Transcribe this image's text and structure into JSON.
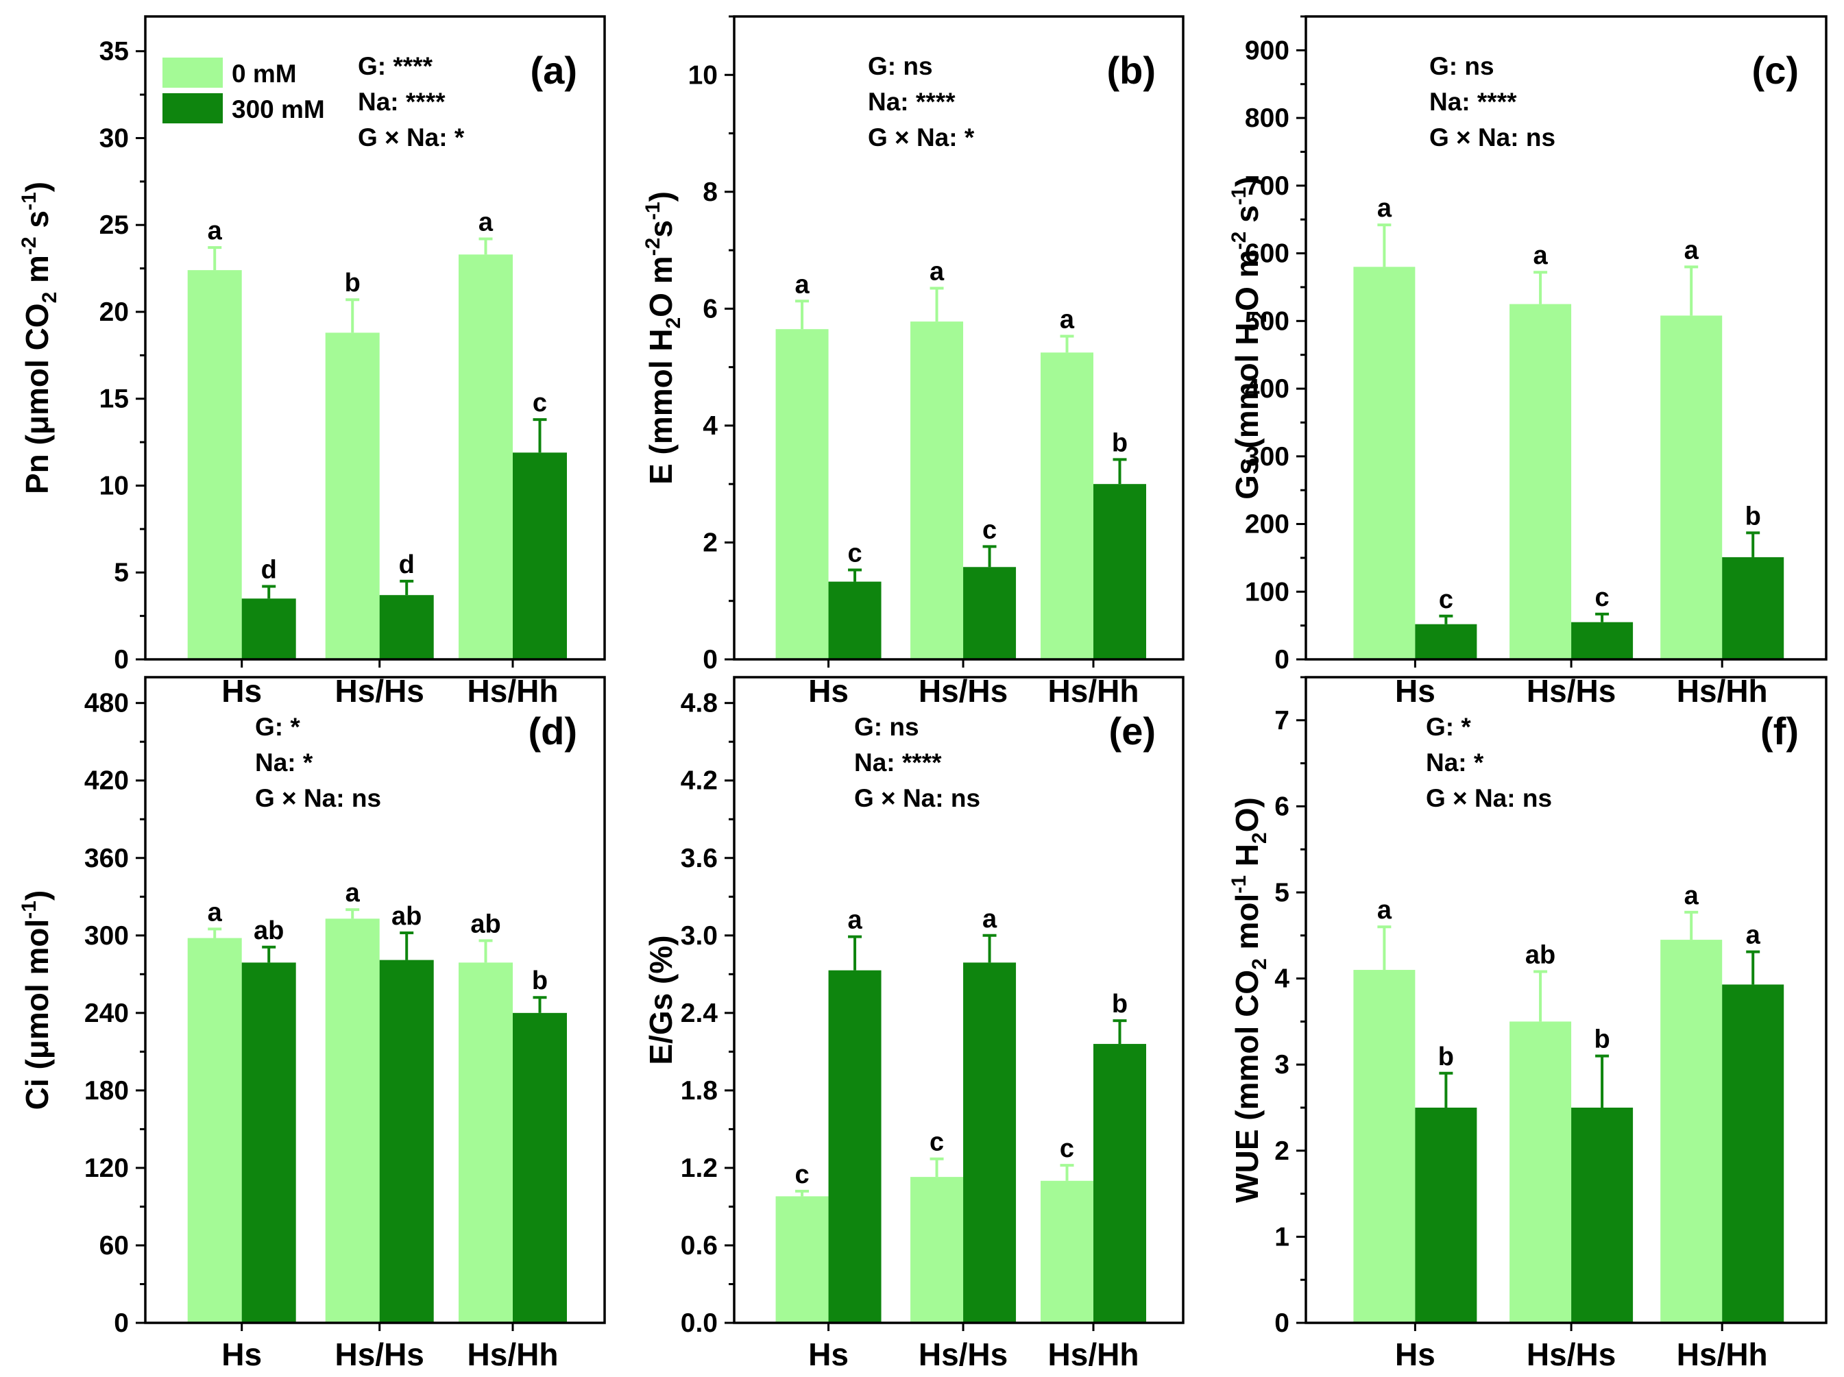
{
  "chart_data": [
    {
      "type": "bar",
      "panel_label": "(a)",
      "ylabel": {
        "main": "Pn (",
        "mu": "μ",
        "text1": "mol CO",
        "sub1": "2",
        "text2": " m",
        "sup1": "-2",
        "text3": " s",
        "sup2": "-1",
        "text4": ")"
      },
      "ylim": [
        0,
        37
      ],
      "yticks": [
        0,
        5,
        10,
        15,
        20,
        25,
        30,
        35
      ],
      "ytick_labels": [
        "0",
        "5",
        "10",
        "15",
        "20",
        "25",
        "30",
        "35"
      ],
      "categories": [
        "Hs",
        "Hs/Hs",
        "Hs/Hh"
      ],
      "series": [
        {
          "name": "0 mM",
          "color": "#a4fa96",
          "values": [
            22.4,
            18.8,
            23.3
          ],
          "errors": [
            1.3,
            1.9,
            0.9
          ],
          "letters": [
            "a",
            "b",
            "a"
          ]
        },
        {
          "name": "300 mM",
          "color": "#0e850e",
          "values": [
            3.5,
            3.7,
            11.9
          ],
          "errors": [
            0.7,
            0.8,
            1.9
          ],
          "letters": [
            "d",
            "d",
            "c"
          ]
        }
      ],
      "stats": [
        "G: ****",
        "Na: ****",
        "G × Na: *"
      ]
    },
    {
      "type": "bar",
      "panel_label": "(b)",
      "ylabel": {
        "main": "E (mmol H",
        "sub1": "2",
        "text1": "O m",
        "sup1": "-2",
        "text2": "s",
        "sup2": "-1",
        "text3": ")"
      },
      "ylim": [
        0,
        11
      ],
      "yticks": [
        0,
        2,
        4,
        6,
        8,
        10
      ],
      "ytick_labels": [
        "0",
        "2",
        "4",
        "6",
        "8",
        "10"
      ],
      "categories": [
        "Hs",
        "Hs/Hs",
        "Hs/Hh"
      ],
      "series": [
        {
          "name": "0 mM",
          "color": "#a4fa96",
          "values": [
            5.65,
            5.78,
            5.25
          ],
          "errors": [
            0.48,
            0.57,
            0.28
          ],
          "letters": [
            "a",
            "a",
            "a"
          ]
        },
        {
          "name": "300 mM",
          "color": "#0e850e",
          "values": [
            1.33,
            1.58,
            3.0
          ],
          "errors": [
            0.2,
            0.35,
            0.42
          ],
          "letters": [
            "c",
            "c",
            "b"
          ]
        }
      ],
      "stats": [
        "G: ns",
        "Na: ****",
        "G × Na: *"
      ]
    },
    {
      "type": "bar",
      "panel_label": "(c)",
      "ylabel": {
        "main": "Gs (mmol H",
        "sub1": "2",
        "text1": "O m",
        "sup1": "-2",
        "text2": " s",
        "sup2": "-1",
        "text3": ")"
      },
      "ylim": [
        0,
        950
      ],
      "yticks": [
        0,
        100,
        200,
        300,
        400,
        500,
        600,
        700,
        800,
        900
      ],
      "ytick_labels": [
        "0",
        "100",
        "200",
        "300",
        "400",
        "500",
        "600",
        "700",
        "800",
        "900"
      ],
      "categories": [
        "Hs",
        "Hs/Hs",
        "Hs/Hh"
      ],
      "series": [
        {
          "name": "0 mM",
          "color": "#a4fa96",
          "values": [
            580,
            525,
            508
          ],
          "errors": [
            62,
            47,
            72
          ],
          "letters": [
            "a",
            "a",
            "a"
          ]
        },
        {
          "name": "300 mM",
          "color": "#0e850e",
          "values": [
            52,
            55,
            151
          ],
          "errors": [
            12,
            12,
            36
          ],
          "letters": [
            "c",
            "c",
            "b"
          ]
        }
      ],
      "stats": [
        "G: ns",
        "Na: ****",
        "G × Na: ns"
      ]
    },
    {
      "type": "bar",
      "panel_label": "(d)",
      "ylabel": {
        "main": "Ci (",
        "mu": "μ",
        "text1": "mol mol",
        "sup1": "-1",
        "text2": ")"
      },
      "ylim": [
        0,
        500
      ],
      "yticks": [
        0,
        60,
        120,
        180,
        240,
        300,
        360,
        420,
        480
      ],
      "ytick_labels": [
        "0",
        "60",
        "120",
        "180",
        "240",
        "300",
        "360",
        "420",
        "480"
      ],
      "categories": [
        "Hs",
        "Hs/Hs",
        "Hs/Hh"
      ],
      "series": [
        {
          "name": "0 mM",
          "color": "#a4fa96",
          "values": [
            298,
            313,
            279
          ],
          "errors": [
            7,
            7,
            17
          ],
          "letters": [
            "a",
            "a",
            "ab"
          ]
        },
        {
          "name": "300 mM",
          "color": "#0e850e",
          "values": [
            279,
            281,
            240
          ],
          "errors": [
            12,
            21,
            12
          ],
          "letters": [
            "ab",
            "ab",
            "b"
          ]
        }
      ],
      "stats": [
        "G: *",
        "Na: *",
        "G × Na: ns"
      ]
    },
    {
      "type": "bar",
      "panel_label": "(e)",
      "ylabel": {
        "main": "E/Gs (%)"
      },
      "ylim": [
        0,
        5.0
      ],
      "yticks": [
        0,
        0.6,
        1.2,
        1.8,
        2.4,
        3.0,
        3.6,
        4.2,
        4.8
      ],
      "ytick_labels": [
        "0.0",
        "0.6",
        "1.2",
        "1.8",
        "2.4",
        "3.0",
        "3.6",
        "4.2",
        "4.8"
      ],
      "categories": [
        "Hs",
        "Hs/Hs",
        "Hs/Hh"
      ],
      "series": [
        {
          "name": "0 mM",
          "color": "#a4fa96",
          "values": [
            0.98,
            1.13,
            1.1
          ],
          "errors": [
            0.04,
            0.14,
            0.12
          ],
          "letters": [
            "c",
            "c",
            "c"
          ]
        },
        {
          "name": "300 mM",
          "color": "#0e850e",
          "values": [
            2.73,
            2.79,
            2.16
          ],
          "errors": [
            0.26,
            0.21,
            0.18
          ],
          "letters": [
            "a",
            "a",
            "b"
          ]
        }
      ],
      "stats": [
        "G: ns",
        "Na: ****",
        "G × Na: ns"
      ]
    },
    {
      "type": "bar",
      "panel_label": "(f)",
      "ylabel": {
        "main": "WUE (mmol CO",
        "sub1": "2",
        "text1": " mol",
        "sup1": "-1",
        "text2": " H",
        "sub2": "2",
        "text3": "O)"
      },
      "ylim": [
        0,
        7.5
      ],
      "yticks": [
        0,
        1,
        2,
        3,
        4,
        5,
        6,
        7
      ],
      "ytick_labels": [
        "0",
        "1",
        "2",
        "3",
        "4",
        "5",
        "6",
        "7"
      ],
      "categories": [
        "Hs",
        "Hs/Hs",
        "Hs/Hh"
      ],
      "series": [
        {
          "name": "0 mM",
          "color": "#a4fa96",
          "values": [
            4.1,
            3.5,
            4.45
          ],
          "errors": [
            0.5,
            0.58,
            0.32
          ],
          "letters": [
            "a",
            "ab",
            "a"
          ]
        },
        {
          "name": "300 mM",
          "color": "#0e850e",
          "values": [
            2.5,
            2.5,
            3.93
          ],
          "errors": [
            0.4,
            0.6,
            0.38
          ],
          "letters": [
            "b",
            "b",
            "a"
          ]
        }
      ],
      "stats": [
        "G: *",
        "Na: *",
        "G × Na: ns"
      ]
    }
  ],
  "legend": [
    {
      "label": "0 mM",
      "color": "#a4fa96"
    },
    {
      "label": "300 mM",
      "color": "#0e850e"
    }
  ]
}
